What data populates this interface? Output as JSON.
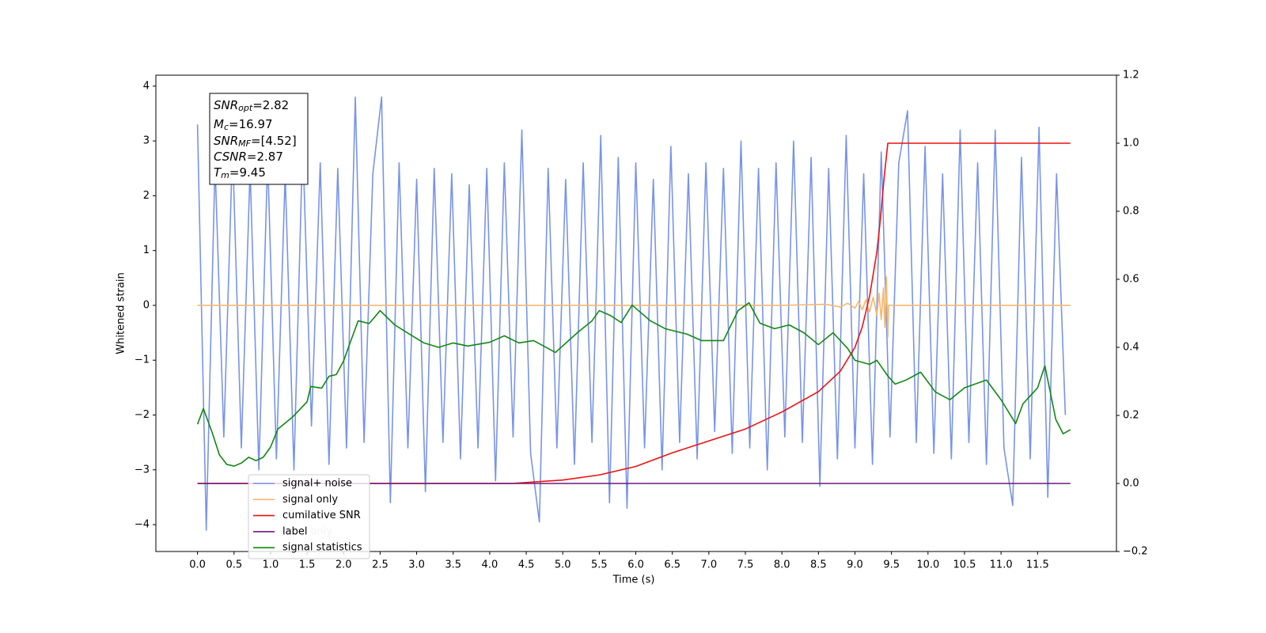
{
  "chart_data": {
    "type": "line",
    "xlabel": "Time (s)",
    "ylabel": "Whitened strain",
    "xlim": [
      -0.57,
      12.58
    ],
    "ylim": [
      -4.49,
      4.2
    ],
    "y2lim": [
      -0.2,
      1.2
    ],
    "xticks": [
      {
        "value": 0,
        "label": "0.0"
      },
      0.5,
      {
        "value": 1,
        "label": "1.0"
      },
      1.5,
      {
        "value": 2,
        "label": "2.0"
      },
      2.5,
      {
        "value": 3,
        "label": "3.0"
      },
      3.5,
      {
        "value": 4,
        "label": "4.0"
      },
      4.5,
      {
        "value": 5,
        "label": "5.0"
      },
      5.5,
      {
        "value": 6,
        "label": "6.0"
      },
      6.5,
      {
        "value": 7,
        "label": "7.0"
      },
      7.5,
      {
        "value": 8,
        "label": "8.0"
      },
      8.5,
      {
        "value": 9,
        "label": "9.0"
      },
      9.5,
      {
        "value": 10,
        "label": "10.0"
      },
      10.5,
      {
        "value": 11,
        "label": "11.0"
      },
      11.5
    ],
    "yticks": [
      {
        "value": -4,
        "label": "−4"
      },
      {
        "value": -3,
        "label": "−3"
      },
      {
        "value": -2,
        "label": "−2"
      },
      {
        "value": -1,
        "label": "−1"
      },
      0,
      1,
      2,
      3,
      4
    ],
    "y2ticks": [
      {
        "value": -0.2,
        "label": "−0.2"
      },
      {
        "value": 0,
        "label": "0.0"
      },
      0.2,
      0.4,
      0.6,
      0.8,
      {
        "value": 1,
        "label": "1.0"
      },
      1.2
    ],
    "annotation": [
      {
        "symbol": "SNR",
        "sub": "opt",
        "text": "=2.82"
      },
      {
        "symbol": "M",
        "sub": "c",
        "text": "=16.97"
      },
      {
        "symbol": "SNR",
        "sub": "MF",
        "text": "=[4.52]"
      },
      {
        "symbol": "CSNR",
        "text": "=2.87"
      },
      {
        "symbol": "T",
        "sub": "m",
        "text": "=9.45"
      }
    ],
    "ghost_legend": [
      "label only"
    ],
    "series": [
      {
        "name": "signal+ noise",
        "color": "#7894e8",
        "x": [
          0,
          0.12,
          0.24,
          0.36,
          0.48,
          0.6,
          0.72,
          0.84,
          0.96,
          1.08,
          1.2,
          1.32,
          1.44,
          1.56,
          1.68,
          1.8,
          1.92,
          2.04,
          2.16,
          2.28,
          2.4,
          2.52,
          2.64,
          2.76,
          2.88,
          3,
          3.12,
          3.24,
          3.36,
          3.48,
          3.6,
          3.72,
          3.84,
          3.96,
          4.08,
          4.2,
          4.32,
          4.44,
          4.56,
          4.68,
          4.8,
          4.92,
          5.04,
          5.16,
          5.28,
          5.4,
          5.52,
          5.64,
          5.76,
          5.88,
          6,
          6.12,
          6.24,
          6.36,
          6.48,
          6.6,
          6.72,
          6.84,
          6.96,
          7.08,
          7.2,
          7.32,
          7.44,
          7.56,
          7.68,
          7.8,
          7.92,
          8.04,
          8.16,
          8.28,
          8.4,
          8.52,
          8.64,
          8.76,
          8.88,
          9,
          9.12,
          9.24,
          9.36,
          9.48,
          9.6,
          9.72,
          9.84,
          9.96,
          10.08,
          10.2,
          10.32,
          10.44,
          10.56,
          10.68,
          10.8,
          10.92,
          11.04,
          11.16,
          11.28,
          11.4,
          11.52,
          11.64,
          11.76,
          11.88
        ],
        "values": [
          3.3,
          -4.1,
          2.6,
          -2.4,
          2.9,
          -2.6,
          2.5,
          -3.0,
          2.7,
          -2.8,
          2.4,
          -3.0,
          3.0,
          -2.2,
          2.6,
          -2.9,
          2.5,
          -2.6,
          3.8,
          -2.5,
          2.4,
          3.8,
          -3.6,
          2.6,
          -2.6,
          2.3,
          -3.4,
          2.5,
          -2.5,
          2.4,
          -2.8,
          2.2,
          -2.6,
          2.5,
          -3.2,
          2.6,
          -2.4,
          3.2,
          -2.7,
          -3.95,
          2.5,
          -2.6,
          2.3,
          -2.9,
          2.6,
          -2.5,
          3.1,
          -3.6,
          2.7,
          -3.7,
          2.6,
          -2.6,
          2.3,
          -3.0,
          2.9,
          -2.5,
          2.4,
          -2.8,
          2.6,
          -2.3,
          2.5,
          -2.7,
          3.0,
          -2.6,
          2.5,
          -3.0,
          2.6,
          -2.4,
          3.0,
          -2.5,
          2.7,
          -3.3,
          2.5,
          -2.8,
          3.1,
          -2.6,
          2.4,
          -2.9,
          2.8,
          -2.4,
          2.6,
          3.55,
          -2.5,
          2.9,
          -2.7,
          2.4,
          -2.8,
          3.2,
          -2.5,
          2.6,
          -2.9,
          3.2,
          -2.6,
          -3.65,
          2.7,
          -2.8,
          3.25,
          -3.5,
          2.4,
          -2.0
        ]
      },
      {
        "name": "signal only",
        "color": "#f5b870",
        "x": [
          0,
          8,
          8.6,
          8.8,
          8.9,
          9,
          9.05,
          9.1,
          9.15,
          9.2,
          9.25,
          9.3,
          9.33,
          9.36,
          9.39,
          9.41,
          9.43,
          9.45,
          9.46,
          11.95
        ],
        "values": [
          0,
          0,
          0.02,
          -0.03,
          0.04,
          -0.05,
          0.07,
          -0.08,
          0.1,
          -0.12,
          0.15,
          -0.18,
          0.22,
          -0.26,
          0.32,
          -0.4,
          0.52,
          -0.58,
          0,
          0
        ]
      },
      {
        "name": "cumilative SNR",
        "color": "#ee1111",
        "axis": "y2",
        "x": [
          0,
          4.3,
          5,
          5.5,
          6,
          6.5,
          7,
          7.5,
          8,
          8.5,
          8.8,
          9,
          9.1,
          9.2,
          9.3,
          9.35,
          9.4,
          9.45,
          11.95
        ],
        "values": [
          0,
          0,
          0.01,
          0.025,
          0.05,
          0.09,
          0.125,
          0.16,
          0.21,
          0.27,
          0.33,
          0.4,
          0.46,
          0.55,
          0.68,
          0.78,
          0.9,
          1,
          1
        ]
      },
      {
        "name": "label",
        "color": "#6a1a7a",
        "axis": "y2",
        "x": [
          0,
          11.95
        ],
        "values": [
          0,
          0
        ]
      },
      {
        "name": "signal statistics",
        "color": "#118811",
        "axis": "y2",
        "x": [
          0,
          0.08,
          0.2,
          0.3,
          0.4,
          0.5,
          0.6,
          0.7,
          0.8,
          0.9,
          1,
          1.1,
          1.3,
          1.5,
          1.55,
          1.7,
          1.8,
          1.9,
          2,
          2.1,
          2.2,
          2.35,
          2.5,
          2.7,
          2.9,
          3.1,
          3.3,
          3.5,
          3.7,
          4,
          4.2,
          4.4,
          4.6,
          4.9,
          5.2,
          5.4,
          5.5,
          5.65,
          5.8,
          5.95,
          6.2,
          6.4,
          6.7,
          6.9,
          7.2,
          7.4,
          7.55,
          7.7,
          7.9,
          8.1,
          8.3,
          8.5,
          8.7,
          8.9,
          9,
          9.2,
          9.3,
          9.45,
          9.55,
          9.7,
          9.9,
          10.1,
          10.3,
          10.5,
          10.8,
          11,
          11.2,
          11.3,
          11.5,
          11.6,
          11.75,
          11.85,
          11.95
        ],
        "values": [
          0.174,
          0.22,
          0.15,
          0.084,
          0.056,
          0.051,
          0.06,
          0.077,
          0.067,
          0.077,
          0.107,
          0.16,
          0.195,
          0.24,
          0.285,
          0.28,
          0.315,
          0.32,
          0.36,
          0.42,
          0.478,
          0.47,
          0.508,
          0.466,
          0.439,
          0.413,
          0.4,
          0.413,
          0.404,
          0.415,
          0.434,
          0.413,
          0.42,
          0.385,
          0.443,
          0.478,
          0.508,
          0.494,
          0.473,
          0.524,
          0.478,
          0.455,
          0.439,
          0.42,
          0.42,
          0.508,
          0.531,
          0.471,
          0.455,
          0.466,
          0.443,
          0.408,
          0.443,
          0.397,
          0.362,
          0.35,
          0.362,
          0.316,
          0.292,
          0.304,
          0.327,
          0.269,
          0.246,
          0.281,
          0.304,
          0.246,
          0.176,
          0.234,
          0.281,
          0.346,
          0.188,
          0.146,
          0.158
        ]
      }
    ]
  }
}
